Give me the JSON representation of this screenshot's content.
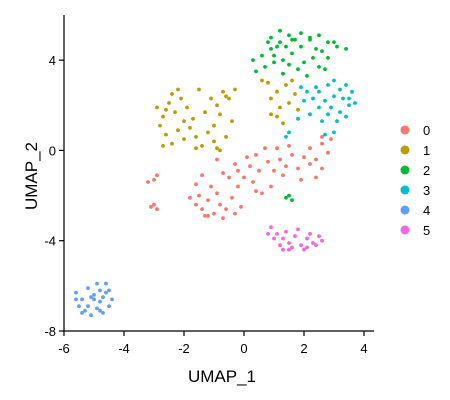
{
  "chart_data": {
    "type": "scatter",
    "title": "",
    "xlabel": "UMAP_1",
    "ylabel": "UMAP_2",
    "xlim": [
      -6,
      4.2
    ],
    "ylim": [
      -8,
      6
    ],
    "xticks": [
      -6,
      -4,
      -2,
      0,
      2,
      4
    ],
    "yticks": [
      -8,
      -4,
      0,
      4
    ],
    "xtick_labels": [
      "-6",
      "-4",
      "-2",
      "0",
      "2",
      "4"
    ],
    "ytick_labels": [
      "-8",
      "-4",
      "0",
      "4"
    ],
    "grid": false,
    "legend_position": "right",
    "series": [
      {
        "name": "0",
        "color": "#F8766D",
        "points": [
          [
            -1.6,
            -2.4
          ],
          [
            -1.4,
            -2.6
          ],
          [
            -1.2,
            -2.2
          ],
          [
            -1.0,
            -2.8
          ],
          [
            -0.8,
            -2.4
          ],
          [
            -1.3,
            -2.9
          ],
          [
            -0.6,
            -2.6
          ],
          [
            -0.9,
            -1.9
          ],
          [
            -0.4,
            -2.1
          ],
          [
            -1.1,
            -1.6
          ],
          [
            -0.5,
            -1.2
          ],
          [
            -0.2,
            -1.6
          ],
          [
            0.0,
            -1.2
          ],
          [
            0.3,
            -1.4
          ],
          [
            0.5,
            -0.9
          ],
          [
            0.2,
            -0.7
          ],
          [
            -0.3,
            -0.6
          ],
          [
            0.1,
            -0.3
          ],
          [
            0.4,
            -0.2
          ],
          [
            0.8,
            -0.5
          ],
          [
            1.0,
            -0.9
          ],
          [
            1.2,
            -0.4
          ],
          [
            1.4,
            -0.7
          ],
          [
            1.6,
            -0.2
          ],
          [
            1.8,
            -0.8
          ],
          [
            2.0,
            -0.3
          ],
          [
            2.2,
            0.1
          ],
          [
            2.4,
            -0.4
          ],
          [
            2.6,
            0.3
          ],
          [
            2.8,
            -0.1
          ],
          [
            2.6,
            -0.8
          ],
          [
            2.4,
            -1.2
          ],
          [
            1.5,
            0.2
          ],
          [
            1.1,
            0.1
          ],
          [
            0.7,
            0.1
          ],
          [
            -0.7,
            -1.0
          ],
          [
            -1.6,
            -1.5
          ],
          [
            -1.8,
            -2.1
          ],
          [
            -0.9,
            -0.4
          ],
          [
            -0.1,
            -2.5
          ],
          [
            -0.7,
            -3.0
          ],
          [
            0.6,
            -1.9
          ],
          [
            1.9,
            -1.3
          ],
          [
            2.2,
            -0.6
          ],
          [
            0.9,
            -1.6
          ],
          [
            -1.4,
            -1.1
          ],
          [
            -3.0,
            -1.3
          ],
          [
            -2.9,
            -1.1
          ],
          [
            -3.2,
            -1.4
          ],
          [
            -3.0,
            -2.4
          ],
          [
            -2.9,
            -2.6
          ],
          [
            -3.1,
            -2.5
          ],
          [
            2.9,
            0.5
          ],
          [
            2.6,
            0.6
          ],
          [
            1.3,
            -1.1
          ],
          [
            0.4,
            -1.8
          ],
          [
            -0.2,
            -0.9
          ],
          [
            -1.2,
            -2.9
          ],
          [
            -1.5,
            -2.0
          ],
          [
            -0.3,
            -2.8
          ]
        ]
      },
      {
        "name": "1",
        "color": "#B79F00",
        "points": [
          [
            -2.9,
            1.9
          ],
          [
            -2.7,
            1.5
          ],
          [
            -2.5,
            2.1
          ],
          [
            -2.3,
            1.7
          ],
          [
            -2.1,
            2.3
          ],
          [
            -1.9,
            1.9
          ],
          [
            -1.7,
            1.4
          ],
          [
            -2.8,
            1.1
          ],
          [
            -2.6,
            0.7
          ],
          [
            -2.4,
            0.3
          ],
          [
            -2.2,
            0.9
          ],
          [
            -2.0,
            0.5
          ],
          [
            -1.8,
            1.0
          ],
          [
            -1.6,
            0.6
          ],
          [
            -1.4,
            0.2
          ],
          [
            -1.2,
            0.8
          ],
          [
            -1.0,
            0.4
          ],
          [
            -0.8,
            0.0
          ],
          [
            -0.6,
            0.6
          ],
          [
            -0.4,
            1.3
          ],
          [
            -1.3,
            1.7
          ],
          [
            -1.1,
            2.3
          ],
          [
            -0.9,
            2.0
          ],
          [
            -0.7,
            2.6
          ],
          [
            -0.5,
            2.3
          ],
          [
            -0.3,
            2.7
          ],
          [
            -0.8,
            1.6
          ],
          [
            -2.0,
            1.3
          ],
          [
            -2.4,
            2.5
          ],
          [
            -2.7,
            0.2
          ],
          [
            -1.5,
            2.7
          ],
          [
            -0.6,
            2.4
          ],
          [
            0.8,
            3.0
          ],
          [
            1.1,
            2.6
          ],
          [
            1.4,
            2.9
          ],
          [
            1.7,
            2.5
          ],
          [
            0.9,
            2.3
          ],
          [
            1.2,
            1.9
          ],
          [
            1.5,
            2.1
          ],
          [
            1.1,
            1.5
          ],
          [
            1.3,
            1.2
          ],
          [
            0.9,
            1.6
          ],
          [
            1.8,
            1.8
          ],
          [
            0.6,
            3.1
          ],
          [
            1.6,
            3.1
          ],
          [
            -2.2,
            2.7
          ],
          [
            -1.0,
            1.1
          ],
          [
            -1.6,
            0.1
          ],
          [
            -2.6,
            1.8
          ],
          [
            -0.9,
            0.1
          ]
        ]
      },
      {
        "name": "2",
        "color": "#00BA38",
        "points": [
          [
            0.3,
            4.0
          ],
          [
            0.6,
            4.2
          ],
          [
            0.9,
            4.5
          ],
          [
            1.2,
            4.8
          ],
          [
            1.5,
            5.1
          ],
          [
            1.2,
            5.3
          ],
          [
            0.9,
            5.0
          ],
          [
            1.4,
            4.6
          ],
          [
            1.7,
            4.9
          ],
          [
            1.0,
            4.2
          ],
          [
            1.3,
            4.0
          ],
          [
            1.6,
            4.3
          ],
          [
            1.9,
            4.6
          ],
          [
            2.2,
            4.9
          ],
          [
            2.5,
            5.1
          ],
          [
            2.8,
            4.8
          ],
          [
            3.1,
            4.6
          ],
          [
            3.4,
            4.5
          ],
          [
            2.6,
            4.4
          ],
          [
            2.3,
            4.1
          ],
          [
            2.0,
            3.9
          ],
          [
            1.8,
            3.6
          ],
          [
            1.5,
            3.8
          ],
          [
            2.5,
            3.7
          ],
          [
            2.8,
            4.1
          ],
          [
            3.0,
            4.8
          ],
          [
            2.2,
            5.0
          ],
          [
            1.9,
            5.2
          ],
          [
            1.1,
            4.6
          ],
          [
            0.7,
            3.7
          ],
          [
            0.4,
            3.5
          ],
          [
            1.6,
            4.9
          ],
          [
            2.4,
            4.5
          ],
          [
            1.3,
            3.4
          ],
          [
            2.1,
            3.3
          ],
          [
            2.7,
            3.6
          ],
          [
            0.8,
            4.8
          ],
          [
            1.0,
            3.9
          ],
          [
            1.4,
            -2.1
          ],
          [
            1.6,
            -2.2
          ],
          [
            1.5,
            -2.0
          ]
        ]
      },
      {
        "name": "3",
        "color": "#00BFC4",
        "points": [
          [
            2.8,
            2.9
          ],
          [
            3.0,
            3.1
          ],
          [
            3.2,
            2.7
          ],
          [
            3.4,
            2.9
          ],
          [
            3.6,
            2.6
          ],
          [
            3.3,
            2.3
          ],
          [
            3.0,
            2.4
          ],
          [
            2.7,
            2.2
          ],
          [
            2.9,
            1.9
          ],
          [
            3.2,
            1.7
          ],
          [
            3.5,
            2.0
          ],
          [
            3.4,
            1.5
          ],
          [
            3.1,
            1.3
          ],
          [
            2.8,
            1.6
          ],
          [
            2.5,
            1.9
          ],
          [
            2.3,
            2.3
          ],
          [
            2.1,
            2.6
          ],
          [
            2.4,
            2.8
          ],
          [
            2.0,
            2.2
          ],
          [
            2.2,
            1.6
          ],
          [
            2.6,
            1.3
          ],
          [
            3.0,
            0.8
          ],
          [
            2.7,
            0.7
          ],
          [
            1.8,
            1.4
          ],
          [
            1.5,
            0.8
          ],
          [
            1.4,
            0.6
          ],
          [
            1.9,
            2.8
          ],
          [
            2.5,
            2.6
          ],
          [
            3.5,
            2.3
          ],
          [
            3.7,
            2.1
          ]
        ]
      },
      {
        "name": "4",
        "color": "#619CFF",
        "points": [
          [
            -5.6,
            -6.3
          ],
          [
            -5.4,
            -6.6
          ],
          [
            -5.2,
            -6.9
          ],
          [
            -5.0,
            -6.4
          ],
          [
            -4.8,
            -6.7
          ],
          [
            -4.6,
            -6.3
          ],
          [
            -4.4,
            -6.6
          ],
          [
            -5.3,
            -7.1
          ],
          [
            -5.1,
            -7.3
          ],
          [
            -4.9,
            -7.0
          ],
          [
            -4.7,
            -7.2
          ],
          [
            -4.5,
            -6.9
          ],
          [
            -5.5,
            -6.9
          ],
          [
            -5.2,
            -6.1
          ],
          [
            -4.9,
            -5.9
          ],
          [
            -4.6,
            -5.9
          ],
          [
            -5.0,
            -6.6
          ],
          [
            -4.7,
            -6.5
          ],
          [
            -5.4,
            -7.2
          ],
          [
            -4.8,
            -7.1
          ],
          [
            -5.6,
            -6.6
          ],
          [
            -4.5,
            -6.2
          ],
          [
            -5.1,
            -6.5
          ],
          [
            -4.8,
            -6.2
          ]
        ]
      },
      {
        "name": "5",
        "color": "#F564E3",
        "points": [
          [
            0.9,
            -3.4
          ],
          [
            1.1,
            -3.7
          ],
          [
            1.3,
            -3.9
          ],
          [
            1.5,
            -4.1
          ],
          [
            1.7,
            -3.8
          ],
          [
            1.9,
            -4.2
          ],
          [
            2.1,
            -3.9
          ],
          [
            2.3,
            -4.1
          ],
          [
            2.5,
            -3.8
          ],
          [
            1.2,
            -4.2
          ],
          [
            1.0,
            -3.9
          ],
          [
            1.6,
            -4.3
          ],
          [
            2.0,
            -4.4
          ],
          [
            2.4,
            -4.2
          ],
          [
            1.4,
            -3.6
          ],
          [
            1.8,
            -3.5
          ],
          [
            2.2,
            -3.7
          ],
          [
            0.8,
            -3.7
          ],
          [
            1.5,
            -4.4
          ],
          [
            2.6,
            -4.0
          ],
          [
            2.1,
            -4.3
          ],
          [
            1.3,
            -4.4
          ]
        ]
      }
    ]
  }
}
